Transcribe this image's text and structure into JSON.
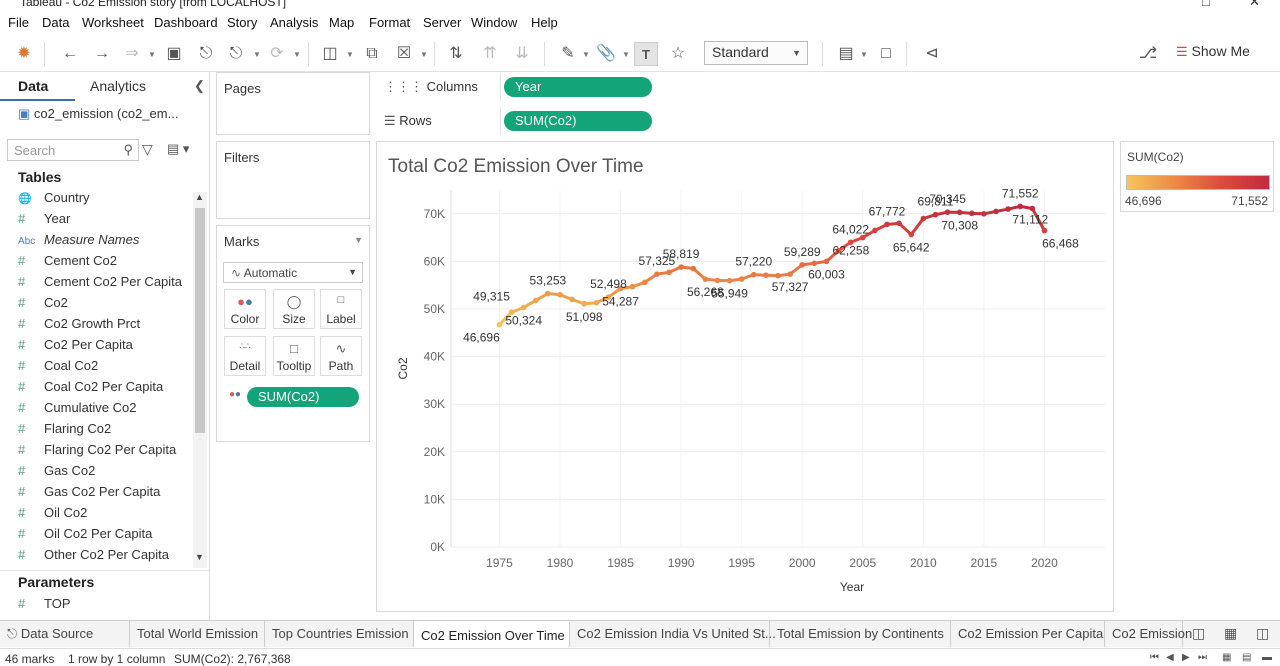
{
  "window": {
    "title": "Tableau - Co2 Emission story [from LOCALHOST]"
  },
  "menu": [
    "File",
    "Data",
    "Worksheet",
    "Dashboard",
    "Story",
    "Analysis",
    "Map",
    "Format",
    "Server",
    "Window",
    "Help"
  ],
  "toolbar": {
    "mark_size_label": "Standard",
    "show_me_label": "Show Me"
  },
  "data_pane": {
    "tab_data": "Data",
    "tab_analytics": "Analytics",
    "datasource": "co2_emission (co2_em...",
    "search_placeholder": "Search",
    "tables_header": "Tables",
    "fields": [
      {
        "type": "globe",
        "name": "Country"
      },
      {
        "type": "#",
        "name": "Year"
      },
      {
        "type": "abc",
        "name": "Measure Names"
      },
      {
        "type": "#",
        "name": "Cement Co2"
      },
      {
        "type": "#",
        "name": "Cement Co2 Per Capita"
      },
      {
        "type": "#",
        "name": "Co2"
      },
      {
        "type": "#",
        "name": "Co2 Growth Prct"
      },
      {
        "type": "#",
        "name": "Co2 Per Capita"
      },
      {
        "type": "#",
        "name": "Coal Co2"
      },
      {
        "type": "#",
        "name": "Coal Co2 Per Capita"
      },
      {
        "type": "#",
        "name": "Cumulative Co2"
      },
      {
        "type": "#",
        "name": "Flaring Co2"
      },
      {
        "type": "#",
        "name": "Flaring Co2 Per Capita"
      },
      {
        "type": "#",
        "name": "Gas Co2"
      },
      {
        "type": "#",
        "name": "Gas Co2 Per Capita"
      },
      {
        "type": "#",
        "name": "Oil Co2"
      },
      {
        "type": "#",
        "name": "Oil Co2 Per Capita"
      },
      {
        "type": "#",
        "name": "Other Co2 Per Capita"
      }
    ],
    "parameters_header": "Parameters",
    "parameters": [
      {
        "type": "#",
        "name": "TOP"
      }
    ]
  },
  "shelves": {
    "pages_label": "Pages",
    "filters_label": "Filters",
    "marks_label": "Marks",
    "mark_type": "Automatic",
    "mark_buttons": [
      {
        "name": "color",
        "label": "Color"
      },
      {
        "name": "size",
        "label": "Size"
      },
      {
        "name": "label",
        "label": "Label"
      },
      {
        "name": "detail",
        "label": "Detail"
      },
      {
        "name": "tooltip",
        "label": "Tooltip"
      },
      {
        "name": "path",
        "label": "Path"
      }
    ],
    "color_pill": "SUM(Co2)",
    "columns_label": "Columns",
    "columns_pill": "Year",
    "rows_label": "Rows",
    "rows_pill": "SUM(Co2)"
  },
  "legend": {
    "title": "SUM(Co2)",
    "min": "46,696",
    "max": "71,552"
  },
  "colors": {
    "pill": "#13a47a",
    "low": "#f6c65b",
    "high": "#c02a3e"
  },
  "chart_data": {
    "type": "line",
    "title": "Total Co2 Emission  Over Time",
    "xlabel": "Year",
    "ylabel": "Co2",
    "xlim": [
      1971,
      2025
    ],
    "ylim": [
      0,
      75000
    ],
    "x_ticks": [
      1975,
      1980,
      1985,
      1990,
      1995,
      2000,
      2005,
      2010,
      2015,
      2020
    ],
    "y_ticks": [
      0,
      10000,
      20000,
      30000,
      40000,
      50000,
      60000,
      70000
    ],
    "y_tick_labels": [
      "0K",
      "10K",
      "20K",
      "30K",
      "40K",
      "50K",
      "60K",
      "70K"
    ],
    "grid": true,
    "series": [
      {
        "x": [
          1975,
          1976,
          1977,
          1978,
          1979,
          1980,
          1981,
          1982,
          1983,
          1984,
          1985,
          1986,
          1987,
          1988,
          1989,
          1990,
          1991,
          1992,
          1993,
          1994,
          1995,
          1996,
          1997,
          1998,
          1999,
          2000,
          2001,
          2002,
          2003,
          2004,
          2005,
          2006,
          2007,
          2008,
          2009,
          2010,
          2011,
          2012,
          2013,
          2014,
          2015,
          2016,
          2017,
          2018,
          2019,
          2020
        ],
        "y": [
          46696,
          49315,
          50324,
          51800,
          53253,
          53000,
          52000,
          51098,
          51300,
          52498,
          54287,
          54700,
          55600,
          57325,
          57700,
          58819,
          58500,
          56268,
          56000,
          55949,
          56300,
          57220,
          57100,
          57000,
          57327,
          59289,
          59600,
          60003,
          62258,
          64022,
          65000,
          66500,
          67772,
          68000,
          65642,
          69000,
          69811,
          70345,
          70308,
          70100,
          70000,
          70500,
          71000,
          71552,
          71112,
          66468
        ]
      }
    ],
    "data_labels": [
      {
        "x": 1975,
        "text": "46,696"
      },
      {
        "x": 1976,
        "text": "49,315"
      },
      {
        "x": 1977,
        "text": "50,324"
      },
      {
        "x": 1979,
        "text": "53,253"
      },
      {
        "x": 1982,
        "text": "51,098"
      },
      {
        "x": 1984,
        "text": "52,498"
      },
      {
        "x": 1985,
        "text": "54,287"
      },
      {
        "x": 1988,
        "text": "57,325"
      },
      {
        "x": 1990,
        "text": "58,819"
      },
      {
        "x": 1992,
        "text": "56,268"
      },
      {
        "x": 1994,
        "text": "55,949"
      },
      {
        "x": 1996,
        "text": "57,220"
      },
      {
        "x": 1999,
        "text": "57,327"
      },
      {
        "x": 2000,
        "text": "59,289"
      },
      {
        "x": 2002,
        "text": "60,003"
      },
      {
        "x": 2003,
        "text": "62,258"
      },
      {
        "x": 2004,
        "text": "64,022"
      },
      {
        "x": 2007,
        "text": "67,772"
      },
      {
        "x": 2009,
        "text": "65,642"
      },
      {
        "x": 2011,
        "text": "69,811"
      },
      {
        "x": 2012,
        "text": "70,345"
      },
      {
        "x": 2013,
        "text": "70,308"
      },
      {
        "x": 2018,
        "text": "71,552"
      },
      {
        "x": 2019,
        "text": "71,112"
      },
      {
        "x": 2020,
        "text": "66,468"
      }
    ]
  },
  "sheet_tabs": [
    {
      "label": "Data Source",
      "active": false
    },
    {
      "label": "Total World Emission",
      "active": false
    },
    {
      "label": "Top Countries Emission",
      "active": false
    },
    {
      "label": "Co2 Emission Over Time",
      "active": true
    },
    {
      "label": "Co2 Emission India Vs United St...",
      "active": false
    },
    {
      "label": "Total Emission by Continents",
      "active": false
    },
    {
      "label": "Co2 Emission Per Capita",
      "active": false
    },
    {
      "label": "Co2 Emission",
      "active": false
    }
  ],
  "status": {
    "marks": "46 marks",
    "rows_cols": "1 row by 1 column",
    "sum": "SUM(Co2): 2,767,368"
  }
}
